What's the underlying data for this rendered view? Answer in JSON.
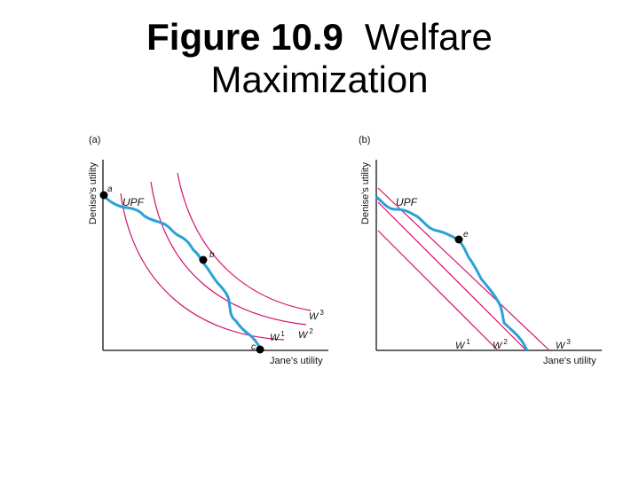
{
  "title": {
    "figure_number": "Figure 10.9",
    "line1_rest": "Welfare",
    "line2": "Maximization"
  },
  "colors": {
    "upf": "#2aa0d8",
    "welfare_curves": "#d4116e",
    "axes": "#333333",
    "points": "#000000"
  },
  "panels": [
    {
      "id": "a",
      "tag": "(a)",
      "y_label": "Denise's utility",
      "x_label": "Jane's utility",
      "upf_label": "UPF",
      "curve_labels": {
        "w1": "W",
        "w1_sup": "1",
        "w2": "W",
        "w2_sup": "2",
        "w3": "W",
        "w3_sup": "3"
      },
      "points": [
        "a",
        "b",
        "c"
      ]
    },
    {
      "id": "b",
      "tag": "(b)",
      "y_label": "Denise's utility",
      "x_label": "Jane's utility",
      "upf_label": "UPF",
      "curve_labels": {
        "w1": "W",
        "w1_sup": "1",
        "w2": "W",
        "w2_sup": "2",
        "w3": "W",
        "w3_sup": "3"
      },
      "points": [
        "e"
      ]
    }
  ]
}
